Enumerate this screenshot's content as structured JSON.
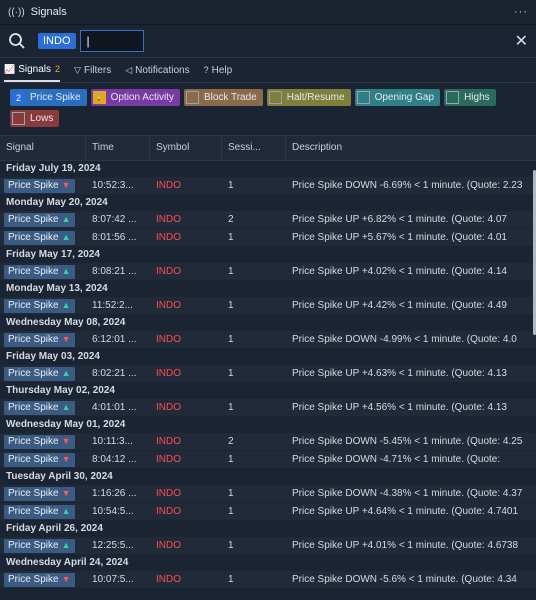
{
  "window": {
    "title": "Signals",
    "more": "···"
  },
  "search": {
    "chip": "INDO",
    "value": "|"
  },
  "tabs": [
    {
      "label": "Signals",
      "count": "2",
      "icon": "chart-icon"
    },
    {
      "label": "Filters",
      "icon": "funnel-icon"
    },
    {
      "label": "Notifications",
      "icon": "megaphone-icon"
    },
    {
      "label": "Help",
      "icon": "question-icon"
    }
  ],
  "filters": [
    {
      "label": "Price Spike",
      "box": "2",
      "bg": "#2a6ebf",
      "state": "on"
    },
    {
      "label": "Option Activity",
      "box": "🔒",
      "bg": "#7a3aa3",
      "state": "lock"
    },
    {
      "label": "Block Trade",
      "box": "",
      "bg": "#8a6a48",
      "state": "off"
    },
    {
      "label": "Halt/Resume",
      "box": "",
      "bg": "#7f7e3a",
      "state": "off"
    },
    {
      "label": "Opening Gap",
      "box": "",
      "bg": "#2e7f86",
      "state": "off"
    },
    {
      "label": "Highs",
      "box": "",
      "bg": "#2b6b5e",
      "state": "off"
    },
    {
      "label": "Lows",
      "box": "",
      "bg": "#8a3a3a",
      "state": "off"
    }
  ],
  "columns": {
    "signal": "Signal",
    "time": "Time",
    "symbol": "Symbol",
    "session": "Sessi...",
    "description": "Description"
  },
  "groups": [
    {
      "date": "Friday July 19, 2024",
      "rows": [
        {
          "signal": "Price Spike",
          "dir": "down",
          "time": "10:52:3...",
          "symbol": "INDO",
          "session": "1",
          "desc": "Price Spike DOWN -6.69% < 1 minute. (Quote: 2.23"
        }
      ]
    },
    {
      "date": "Monday May 20, 2024",
      "rows": [
        {
          "signal": "Price Spike",
          "dir": "up",
          "time": "8:07:42 ...",
          "symbol": "INDO",
          "session": "2",
          "desc": "Price Spike UP +6.82% < 1 minute. (Quote: 4.07"
        },
        {
          "signal": "Price Spike",
          "dir": "up",
          "time": "8:01:56 ...",
          "symbol": "INDO",
          "session": "1",
          "desc": "Price Spike UP +5.67% < 1 minute. (Quote: 4.01"
        }
      ]
    },
    {
      "date": "Friday May 17, 2024",
      "rows": [
        {
          "signal": "Price Spike",
          "dir": "up",
          "time": "8:08:21 ...",
          "symbol": "INDO",
          "session": "1",
          "desc": "Price Spike UP +4.02% < 1 minute. (Quote: 4.14"
        }
      ]
    },
    {
      "date": "Monday May 13, 2024",
      "rows": [
        {
          "signal": "Price Spike",
          "dir": "up",
          "time": "11:52:2...",
          "symbol": "INDO",
          "session": "1",
          "desc": "Price Spike UP +4.42% < 1 minute. (Quote: 4.49"
        }
      ]
    },
    {
      "date": "Wednesday May 08, 2024",
      "rows": [
        {
          "signal": "Price Spike",
          "dir": "down",
          "time": "6:12:01 ...",
          "symbol": "INDO",
          "session": "1",
          "desc": "Price Spike DOWN -4.99% < 1 minute. (Quote: 4.0"
        }
      ]
    },
    {
      "date": "Friday May 03, 2024",
      "rows": [
        {
          "signal": "Price Spike",
          "dir": "up",
          "time": "8:02:21 ...",
          "symbol": "INDO",
          "session": "1",
          "desc": "Price Spike UP +4.63% < 1 minute. (Quote: 4.13"
        }
      ]
    },
    {
      "date": "Thursday May 02, 2024",
      "rows": [
        {
          "signal": "Price Spike",
          "dir": "up",
          "time": "4:01:01 ...",
          "symbol": "INDO",
          "session": "1",
          "desc": "Price Spike UP +4.56% < 1 minute. (Quote: 4.13"
        }
      ]
    },
    {
      "date": "Wednesday May 01, 2024",
      "rows": [
        {
          "signal": "Price Spike",
          "dir": "down",
          "time": "10:11:3...",
          "symbol": "INDO",
          "session": "2",
          "desc": "Price Spike DOWN -5.45% < 1 minute. (Quote: 4.25"
        },
        {
          "signal": "Price Spike",
          "dir": "down",
          "time": "8:04:12 ...",
          "symbol": "INDO",
          "session": "1",
          "desc": "Price Spike DOWN -4.71% < 1 minute. (Quote:"
        }
      ]
    },
    {
      "date": "Tuesday April 30, 2024",
      "rows": [
        {
          "signal": "Price Spike",
          "dir": "down",
          "time": "1:16:26 ...",
          "symbol": "INDO",
          "session": "1",
          "desc": "Price Spike DOWN -4.38% < 1 minute. (Quote: 4.37"
        },
        {
          "signal": "Price Spike",
          "dir": "up",
          "time": "10:54:5...",
          "symbol": "INDO",
          "session": "1",
          "desc": "Price Spike UP +4.64% < 1 minute. (Quote: 4.7401"
        }
      ]
    },
    {
      "date": "Friday April 26, 2024",
      "rows": [
        {
          "signal": "Price Spike",
          "dir": "up",
          "time": "12:25:5...",
          "symbol": "INDO",
          "session": "1",
          "desc": "Price Spike UP +4.01% < 1 minute. (Quote: 4.6738"
        }
      ]
    },
    {
      "date": "Wednesday April 24, 2024",
      "rows": [
        {
          "signal": "Price Spike",
          "dir": "down",
          "time": "10:07:5...",
          "symbol": "INDO",
          "session": "1",
          "desc": "Price Spike DOWN -5.6% < 1 minute. (Quote: 4.34"
        }
      ]
    }
  ]
}
